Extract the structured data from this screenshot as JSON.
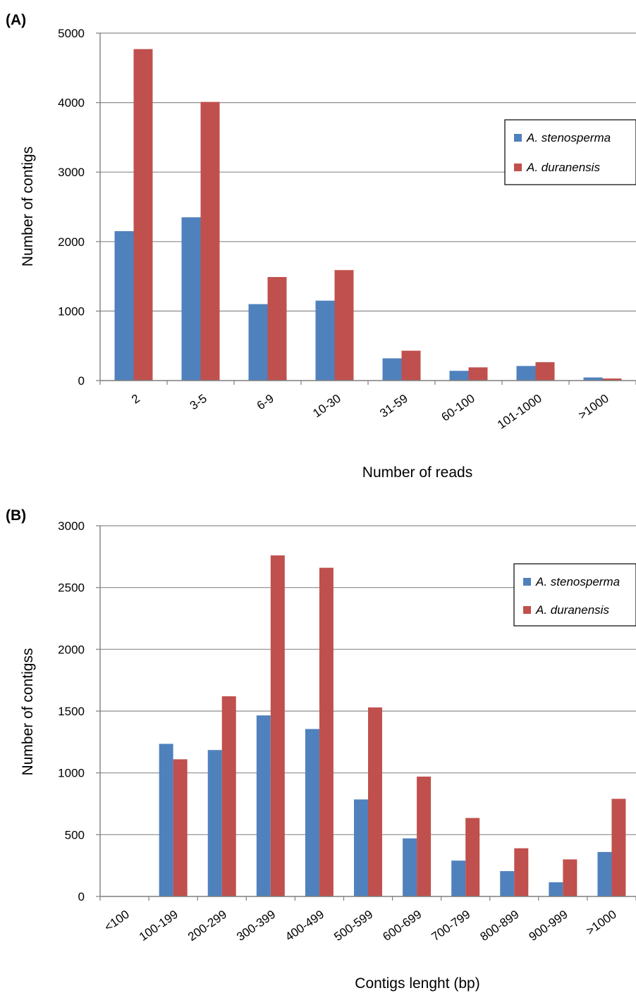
{
  "chart_data": [
    {
      "type": "bar",
      "panel_label": "(A)",
      "xlabel": "Number of  reads",
      "ylabel": "Number of contigs",
      "ylim": [
        0,
        5000
      ],
      "yticks": [
        0,
        1000,
        2000,
        3000,
        4000,
        5000
      ],
      "grid": true,
      "legend_position": "right",
      "categories": [
        "2",
        "3-5",
        "6-9",
        "10-30",
        "31-59",
        "60-100",
        "101-1000",
        ">1000"
      ],
      "series": [
        {
          "name": "A. stenosperma",
          "color": "#4f81bd",
          "values": [
            2150,
            2350,
            1100,
            1150,
            320,
            140,
            210,
            45
          ]
        },
        {
          "name": "A. duranensis",
          "color": "#c0504d",
          "values": [
            4770,
            4010,
            1490,
            1590,
            430,
            190,
            265,
            30
          ]
        }
      ]
    },
    {
      "type": "bar",
      "panel_label": "(B)",
      "xlabel": "Contigs lenght (bp)",
      "ylabel": "Number of contigss",
      "ylim": [
        0,
        3000
      ],
      "yticks": [
        0,
        500,
        1000,
        1500,
        2000,
        2500,
        3000
      ],
      "grid": true,
      "legend_position": "right",
      "categories": [
        "<100",
        "100-199",
        "200-299",
        "300-399",
        "400-499",
        "500-599",
        "600-699",
        "700-799",
        "800-899",
        "900-999",
        ">1000"
      ],
      "series": [
        {
          "name": "A. stenosperma",
          "color": "#4f81bd",
          "values": [
            0,
            1235,
            1185,
            1465,
            1355,
            785,
            470,
            290,
            205,
            115,
            360
          ]
        },
        {
          "name": "A. duranensis",
          "color": "#c0504d",
          "values": [
            0,
            1110,
            1620,
            2760,
            2660,
            1530,
            970,
            635,
            390,
            300,
            790
          ]
        }
      ]
    }
  ]
}
